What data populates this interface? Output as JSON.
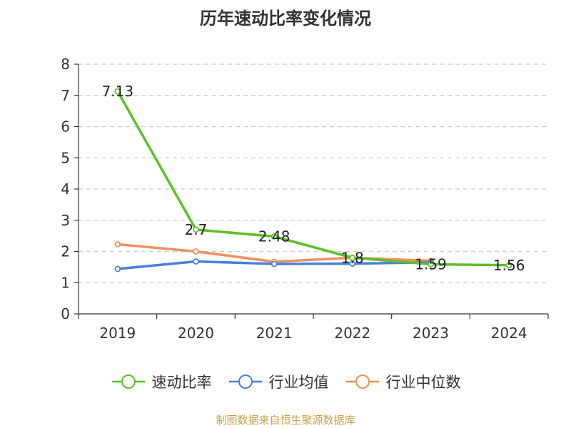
{
  "title": "历年速动比率变化情况",
  "footer": "制图数据来自恒生聚源数据库",
  "colors": {
    "axis": "#333333",
    "grid": "#cccccc",
    "text": "#333333",
    "footer": "#c9a24a"
  },
  "chart_data": {
    "type": "line",
    "title": "历年速动比率变化情况",
    "categories": [
      "2019",
      "2020",
      "2021",
      "2022",
      "2023",
      "2024"
    ],
    "ylim": [
      0,
      8
    ],
    "yticks": [
      0,
      1,
      2,
      3,
      4,
      5,
      6,
      7,
      8
    ],
    "grid": true,
    "legend_position": "bottom",
    "series": [
      {
        "name": "速动比率",
        "color": "#5fbf2a",
        "values": [
          7.13,
          2.7,
          2.48,
          1.8,
          1.59,
          1.56
        ],
        "labels": [
          "7.13",
          "2.7",
          "2.48",
          "1.8",
          "1.59",
          "1.56"
        ]
      },
      {
        "name": "行业均值",
        "color": "#4a7fdb",
        "values": [
          1.44,
          1.68,
          1.6,
          1.61,
          1.65,
          null
        ]
      },
      {
        "name": "行业中位数",
        "color": "#f0905e",
        "values": [
          2.23,
          2.0,
          1.67,
          1.8,
          1.7,
          null
        ]
      }
    ]
  }
}
